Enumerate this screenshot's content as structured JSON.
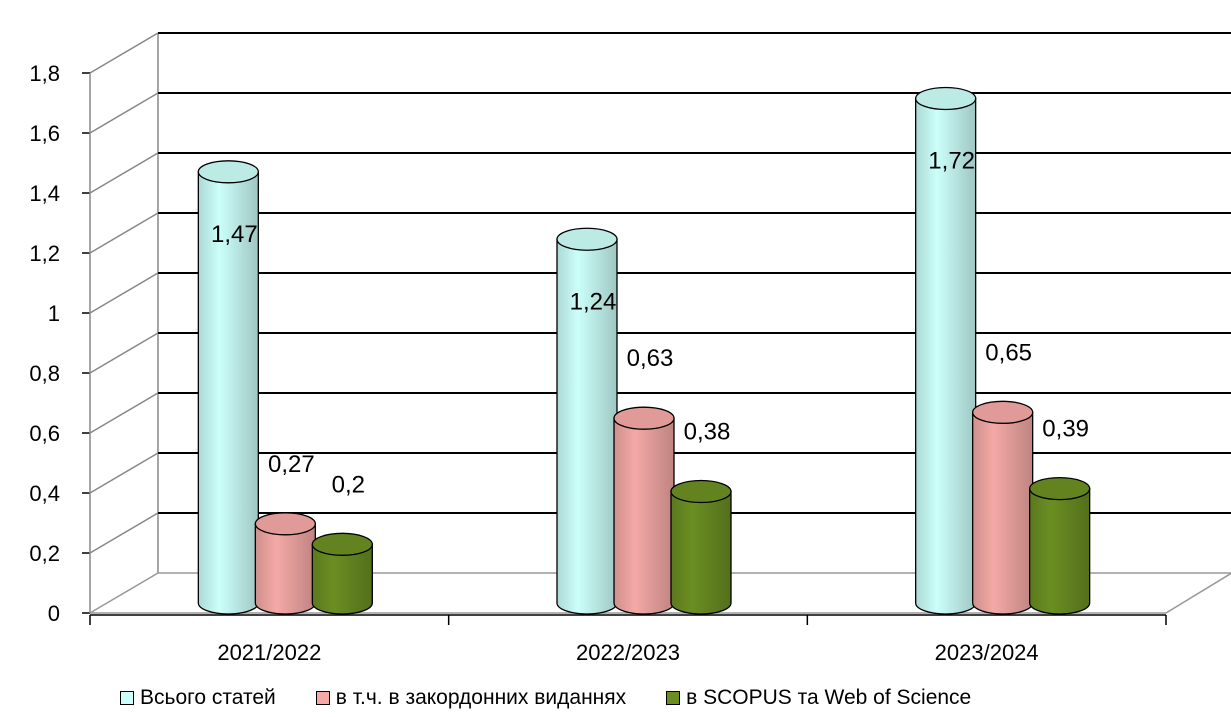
{
  "chart_data": {
    "type": "bar",
    "categories": [
      "2021/2022",
      "2022/2023",
      "2023/2024"
    ],
    "series": [
      {
        "name": "Всього статей",
        "values": [
          1.47,
          1.24,
          1.72
        ],
        "labels": [
          "1,47",
          "1,24",
          "1,72"
        ],
        "color": "#ccfffa"
      },
      {
        "name": "в т.ч. в закордонних виданнях",
        "values": [
          0.27,
          0.63,
          0.65
        ],
        "labels": [
          "0,27",
          "0,63",
          "0,65"
        ],
        "color": "#f4a9a6"
      },
      {
        "name": "в SCOPUS та Web of Science",
        "values": [
          0.2,
          0.38,
          0.39
        ],
        "labels": [
          "0,2",
          "0,38",
          "0,39"
        ],
        "color": "#6b8e23"
      }
    ],
    "yticks": [
      "0",
      "0,2",
      "0,4",
      "0,6",
      "0,8",
      "1",
      "1,2",
      "1,4",
      "1,6",
      "1,8"
    ],
    "ylim": [
      0,
      1.8
    ],
    "grid": true,
    "legend_position": "bottom",
    "style": "3d-cylinder"
  }
}
